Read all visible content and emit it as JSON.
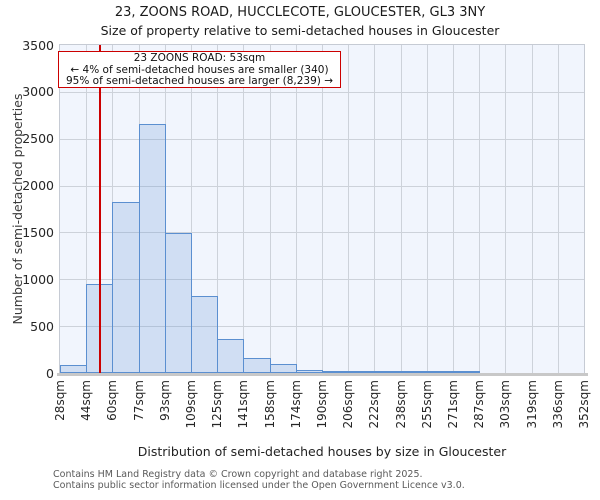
{
  "title": "23, ZOONS ROAD, HUCCLECOTE, GLOUCESTER, GL3 3NY",
  "subtitle": "Size of property relative to semi-detached houses in Gloucester",
  "annotation": {
    "line1": "23 ZOONS ROAD: 53sqm",
    "line2": "← 4% of semi-detached houses are smaller (340)",
    "line3": "95% of semi-detached houses are larger (8,239) →"
  },
  "chart_data": {
    "type": "bar",
    "title": "23, ZOONS ROAD, HUCCLECOTE, GLOUCESTER, GL3 3NY",
    "subtitle": "Size of property relative to semi-detached houses in Gloucester",
    "xlabel": "Distribution of semi-detached houses by size in Gloucester",
    "ylabel": "Number of semi-detached properties",
    "bin_edges_sqm": [
      28,
      44,
      60,
      77,
      93,
      109,
      125,
      141,
      158,
      174,
      190,
      206,
      222,
      238,
      255,
      271,
      287,
      303,
      319,
      336,
      352
    ],
    "x_tick_labels": [
      "28sqm",
      "44sqm",
      "60sqm",
      "77sqm",
      "93sqm",
      "109sqm",
      "125sqm",
      "141sqm",
      "158sqm",
      "174sqm",
      "190sqm",
      "206sqm",
      "222sqm",
      "238sqm",
      "255sqm",
      "271sqm",
      "287sqm",
      "303sqm",
      "319sqm",
      "336sqm",
      "352sqm"
    ],
    "values": [
      90,
      950,
      1820,
      2660,
      1490,
      820,
      360,
      155,
      95,
      35,
      25,
      20,
      25,
      15,
      8,
      6,
      0,
      0,
      0,
      0
    ],
    "y_ticks": [
      0,
      500,
      1000,
      1500,
      2000,
      2500,
      3000,
      3500
    ],
    "ylim": [
      0,
      3500
    ],
    "grid": true,
    "legend": "none",
    "marker_line": {
      "label": "23 ZOONS ROAD",
      "value_sqm": 53
    },
    "colors": {
      "bar_fill": "rgba(91,143,208,0.22)",
      "bar_border": "#5b8fd0",
      "plot_bg": "#f1f5fd",
      "gridline": "#cdd2da",
      "marker": "#cc0000"
    }
  },
  "footer": {
    "line1": "Contains HM Land Registry data © Crown copyright and database right 2025.",
    "line2": "Contains public sector information licensed under the Open Government Licence v3.0."
  }
}
